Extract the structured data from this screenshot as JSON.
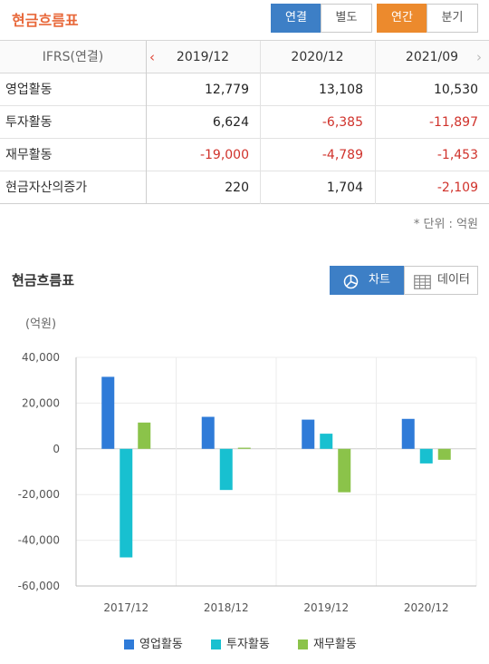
{
  "header": {
    "title": "현금흐름표",
    "tabs_consolidation": [
      {
        "label": "연결",
        "selected": true
      },
      {
        "label": "별도",
        "selected": false
      }
    ],
    "tabs_period": [
      {
        "label": "연간",
        "selected": true
      },
      {
        "label": "분기",
        "selected": false
      }
    ]
  },
  "table": {
    "corner_label": "IFRS(연결)",
    "periods": [
      "2019/12",
      "2020/12",
      "2021/09"
    ],
    "rows": [
      {
        "label": "영업활동",
        "values": [
          "12,779",
          "13,108",
          "10,530"
        ],
        "negative": [
          false,
          false,
          false
        ]
      },
      {
        "label": "투자활동",
        "values": [
          "6,624",
          "-6,385",
          "-11,897"
        ],
        "negative": [
          false,
          true,
          true
        ]
      },
      {
        "label": "재무활동",
        "values": [
          "-19,000",
          "-4,789",
          "-1,453"
        ],
        "negative": [
          true,
          true,
          true
        ]
      },
      {
        "label": "현금자산의증가",
        "values": [
          "220",
          "1,704",
          "-2,109"
        ],
        "negative": [
          false,
          false,
          true
        ]
      }
    ],
    "unit_note": "* 단위 : 억원"
  },
  "chart_section": {
    "title": "현금흐름표",
    "view_chart_label": "차트",
    "view_data_label": "데이터",
    "unit_label": "(억원)"
  },
  "colors": {
    "accent_orange": "#e8683a",
    "tab_blue": "#3d7fc6",
    "tab_orange": "#ec8a2d",
    "negative_red": "#d0322b",
    "series_operating": "#2f7bd8",
    "series_investing": "#18c0d0",
    "series_financing": "#8bc34a"
  },
  "chart_data": {
    "type": "bar",
    "categories": [
      "2017/12",
      "2018/12",
      "2019/12",
      "2020/12"
    ],
    "series": [
      {
        "name": "영업활동",
        "values": [
          31500,
          14000,
          12779,
          13108
        ]
      },
      {
        "name": "투자활동",
        "values": [
          -47500,
          -18000,
          6624,
          -6385
        ]
      },
      {
        "name": "재무활동",
        "values": [
          11500,
          500,
          -19000,
          -4789
        ]
      }
    ],
    "ylim": [
      -60000,
      40000
    ],
    "yticks": [
      "40,000",
      "20,000",
      "0",
      "-20,000",
      "-40,000",
      "-60,000"
    ],
    "ytick_values": [
      40000,
      20000,
      0,
      -20000,
      -40000,
      -60000
    ],
    "grid": true,
    "legend": "bottom"
  }
}
